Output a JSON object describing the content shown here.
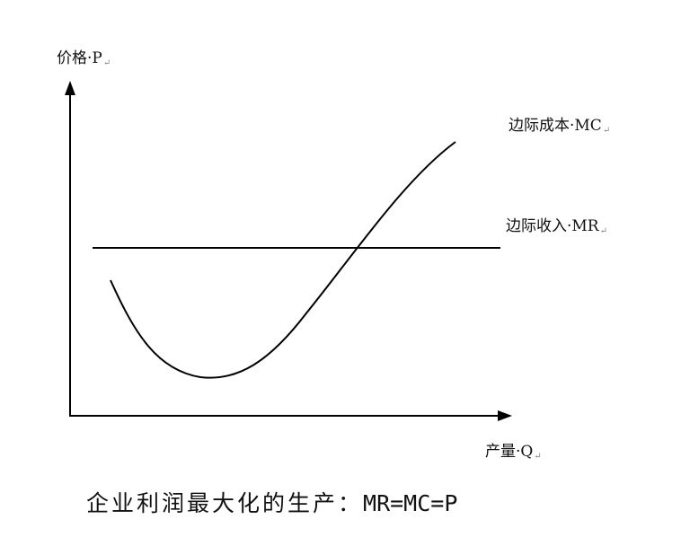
{
  "labels": {
    "y_axis": "价格·P",
    "x_axis": "产量·Q",
    "mc": "边际成本·MC",
    "mr": "边际收入·MR",
    "return_mark": "↵"
  },
  "caption": {
    "text": "企业利润最大化的生产：",
    "formula": "MR=MC=P"
  }
}
